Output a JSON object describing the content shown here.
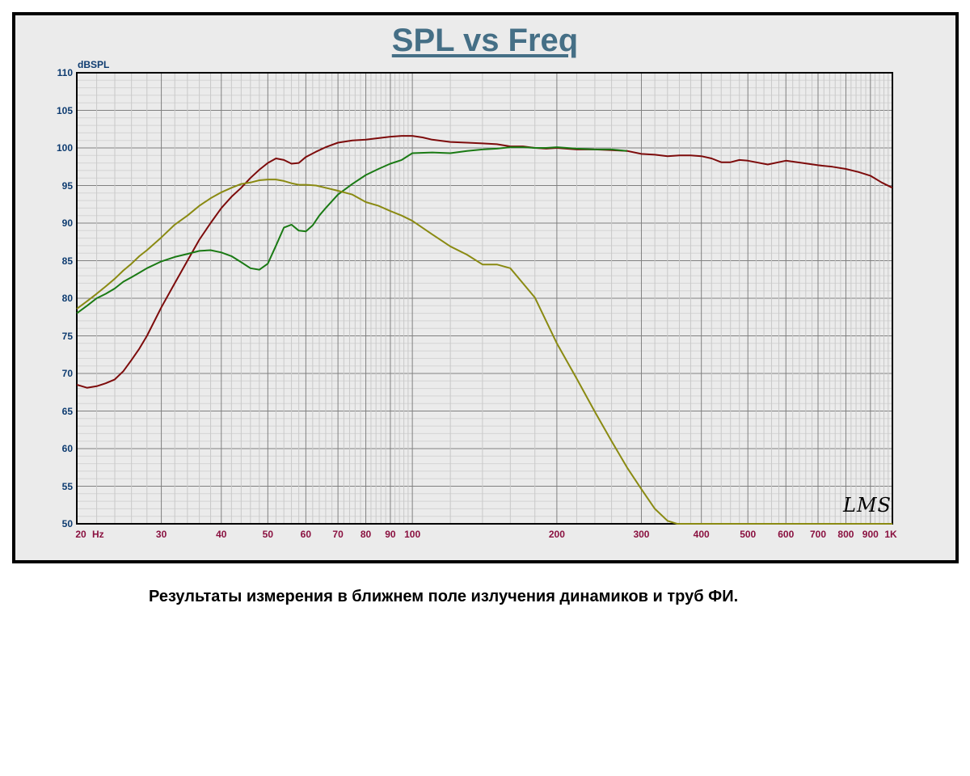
{
  "chart_data": {
    "type": "line",
    "title": "SPL vs Freq",
    "ylabel": "dBSPL",
    "xlabel": "Hz",
    "x_scale": "log",
    "xlim": [
      20,
      1000
    ],
    "ylim": [
      50,
      110
    ],
    "grid": true,
    "y_ticks": [
      "110",
      "105",
      "100",
      "95",
      "90",
      "85",
      "80",
      "75",
      "70",
      "65",
      "60",
      "55",
      "50"
    ],
    "x_ticks": [
      "20",
      "30",
      "40",
      "50",
      "60",
      "70",
      "80",
      "90",
      "100",
      "200",
      "300",
      "400",
      "500",
      "600",
      "700",
      "800",
      "900",
      "1K"
    ],
    "x_unit": "Hz",
    "series": [
      {
        "color": "#7d0b0b",
        "x": [
          20,
          21,
          22,
          23,
          24,
          25,
          26,
          27,
          28,
          30,
          32,
          34,
          36,
          38,
          40,
          42,
          44,
          46,
          48,
          50,
          52,
          54,
          56,
          58,
          60,
          63,
          66,
          70,
          75,
          80,
          85,
          90,
          95,
          100,
          105,
          110,
          120,
          130,
          140,
          150,
          160,
          170,
          180,
          190,
          200,
          220,
          240,
          260,
          280,
          300,
          320,
          340,
          360,
          380,
          400,
          420,
          440,
          460,
          480,
          500,
          550,
          600,
          650,
          700,
          750,
          800,
          850,
          900,
          950,
          1000
        ],
        "y": [
          68.5,
          68.1,
          68.3,
          68.7,
          69.2,
          70.3,
          71.8,
          73.3,
          75.0,
          78.8,
          82.0,
          85.0,
          87.8,
          90.0,
          92.0,
          93.5,
          94.7,
          96.0,
          97.1,
          98.0,
          98.6,
          98.4,
          97.9,
          98.0,
          98.8,
          99.5,
          100.1,
          100.7,
          101.0,
          101.1,
          101.3,
          101.5,
          101.6,
          101.6,
          101.4,
          101.1,
          100.8,
          100.7,
          100.6,
          100.5,
          100.2,
          100.2,
          100.0,
          99.9,
          100.0,
          99.8,
          99.8,
          99.7,
          99.6,
          99.2,
          99.1,
          98.9,
          99.0,
          99.0,
          98.9,
          98.6,
          98.1,
          98.1,
          98.4,
          98.3,
          97.8,
          98.3,
          98.0,
          97.7,
          97.5,
          97.2,
          96.8,
          96.3,
          95.4,
          94.7
        ]
      },
      {
        "color": "#1a7a14",
        "x": [
          20,
          21,
          22,
          23,
          24,
          25,
          26,
          27,
          28,
          30,
          32,
          34,
          36,
          38,
          40,
          42,
          44,
          46,
          48,
          50,
          52,
          54,
          56,
          58,
          60,
          62,
          64,
          66,
          70,
          75,
          80,
          85,
          90,
          95,
          100,
          110,
          120,
          130,
          140,
          150,
          160,
          170,
          180,
          190,
          200,
          220,
          240,
          260,
          280
        ],
        "y": [
          78.0,
          79.0,
          80.0,
          80.6,
          81.3,
          82.2,
          82.8,
          83.4,
          84.0,
          84.9,
          85.5,
          85.9,
          86.3,
          86.4,
          86.1,
          85.6,
          84.8,
          84.0,
          83.8,
          84.6,
          87.0,
          89.4,
          89.8,
          89.0,
          88.9,
          89.7,
          91.0,
          92.0,
          93.8,
          95.2,
          96.4,
          97.2,
          97.9,
          98.4,
          99.3,
          99.4,
          99.3,
          99.6,
          99.8,
          99.9,
          100.1,
          100.1,
          100.0,
          100.0,
          100.1,
          99.9,
          99.8,
          99.8,
          99.6
        ]
      },
      {
        "color": "#8a8a12",
        "x": [
          20,
          21,
          22,
          23,
          24,
          25,
          26,
          27,
          28,
          30,
          32,
          34,
          36,
          38,
          40,
          42,
          44,
          46,
          48,
          50,
          52,
          54,
          56,
          58,
          60,
          63,
          66,
          70,
          75,
          80,
          85,
          90,
          95,
          100,
          110,
          120,
          130,
          140,
          150,
          160,
          180,
          200,
          220,
          240,
          260,
          280,
          300,
          320,
          340,
          356,
          1000
        ],
        "y": [
          78.6,
          79.6,
          80.6,
          81.6,
          82.6,
          83.7,
          84.6,
          85.6,
          86.4,
          88.1,
          89.8,
          91.0,
          92.3,
          93.3,
          94.1,
          94.7,
          95.2,
          95.4,
          95.7,
          95.8,
          95.8,
          95.6,
          95.3,
          95.1,
          95.1,
          95.0,
          94.7,
          94.3,
          93.8,
          92.8,
          92.3,
          91.6,
          91.0,
          90.3,
          88.5,
          86.9,
          85.8,
          84.5,
          84.5,
          84.0,
          80.1,
          74.0,
          69.3,
          64.9,
          61.0,
          57.5,
          54.6,
          52.0,
          50.4,
          50.0,
          50.0
        ]
      }
    ]
  },
  "watermark": "LMS",
  "caption": "Результаты измерения в ближнем поле излучения динамиков и труб ФИ."
}
